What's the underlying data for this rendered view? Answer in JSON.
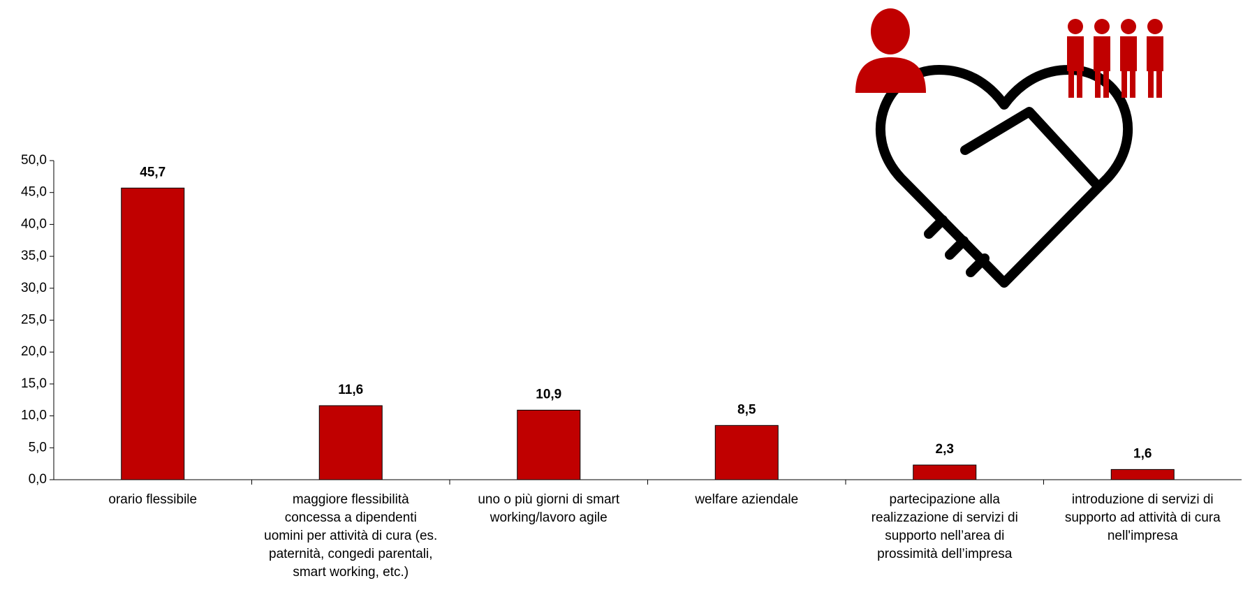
{
  "chart_data": {
    "type": "bar",
    "categories": [
      "orario flessibile",
      "maggiore flessibilità concessa a dipendenti uomini per attività di cura (es. paternità, congedi parentali, smart working, etc.)",
      "uno o più giorni di smart working/lavoro agile",
      "welfare aziendale",
      "partecipazione alla realizzazione di servizi di supporto nell’area di prossimità dell’impresa",
      "introduzione di servizi di supporto ad attività di cura nell'impresa"
    ],
    "values": [
      45.7,
      11.6,
      10.9,
      8.5,
      2.3,
      1.6
    ],
    "value_labels": [
      "45,7",
      "11,6",
      "10,9",
      "8,5",
      "2,3",
      "1,6"
    ],
    "color": "#c00000",
    "ylim": [
      0,
      50
    ],
    "yticks": [
      {
        "value": 0,
        "label": "0,0"
      },
      {
        "value": 5,
        "label": "5,0"
      },
      {
        "value": 10,
        "label": "10,0"
      },
      {
        "value": 15,
        "label": "15,0"
      },
      {
        "value": 20,
        "label": "20,0"
      },
      {
        "value": 25,
        "label": "25,0"
      },
      {
        "value": 30,
        "label": "30,0"
      },
      {
        "value": 35,
        "label": "35,0"
      },
      {
        "value": 40,
        "label": "40,0"
      },
      {
        "value": 45,
        "label": "45,0"
      },
      {
        "value": 50,
        "label": "50,0"
      }
    ],
    "grid": false
  }
}
